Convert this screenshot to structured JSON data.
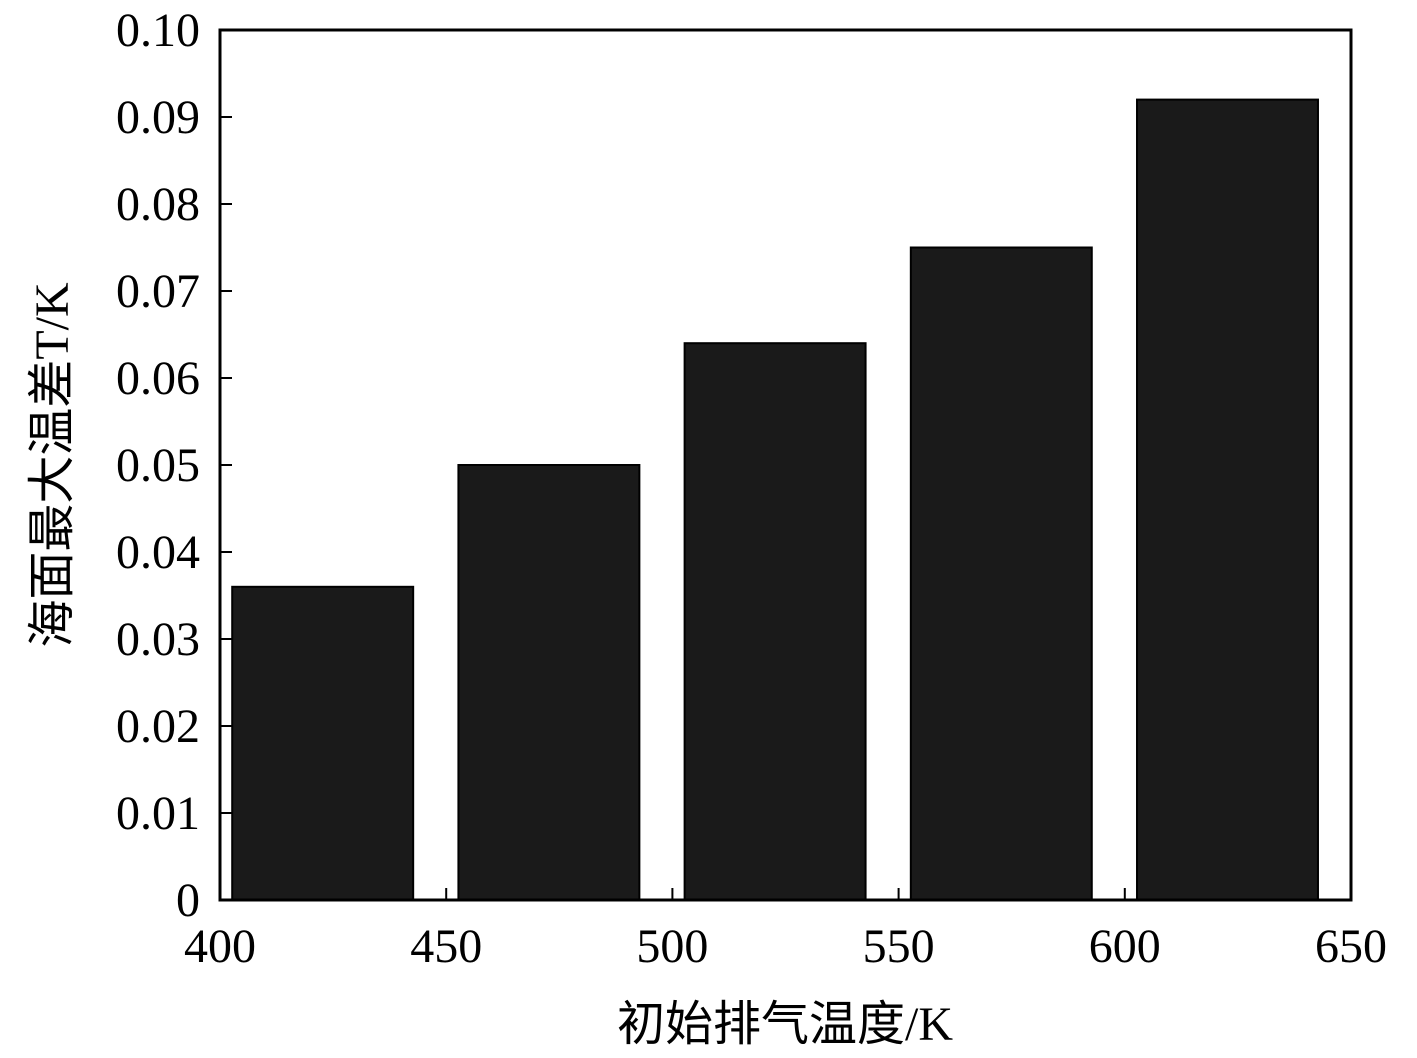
{
  "chart_data": {
    "type": "bar",
    "xlabel": "初始排气温度/K",
    "ylabel": "海面最大温差T/K",
    "x": [
      400,
      450,
      500,
      550,
      600
    ],
    "values": [
      0.036,
      0.05,
      0.064,
      0.075,
      0.092
    ],
    "color": "#1a1a1a",
    "xlim": [
      400,
      650
    ],
    "xticks": [
      400,
      450,
      500,
      550,
      600,
      650
    ],
    "ylim": [
      0,
      0.1
    ],
    "yticks": [
      0,
      0.01,
      0.02,
      0.03,
      0.04,
      0.05,
      0.06,
      0.07,
      0.08,
      0.09,
      {
        "value": 0.1,
        "label": "0.10"
      }
    ],
    "grid": false
  }
}
